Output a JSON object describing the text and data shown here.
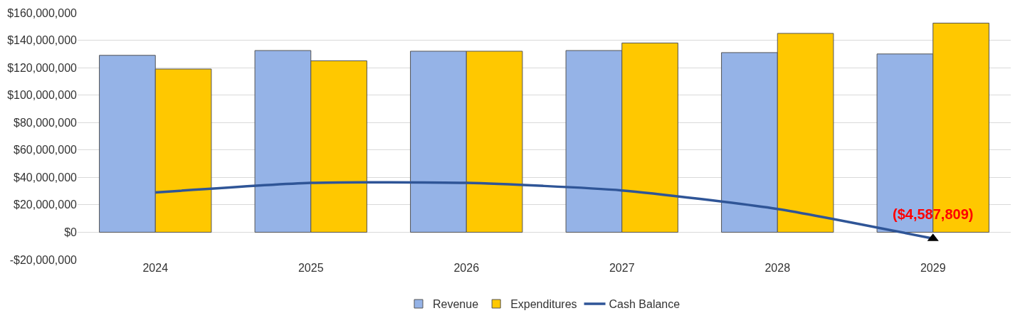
{
  "chart_data": {
    "type": "bar",
    "categories": [
      "2024",
      "2025",
      "2026",
      "2027",
      "2028",
      "2029"
    ],
    "series": [
      {
        "name": "Revenue",
        "color": "#95b3e7",
        "values": [
          129000000,
          132500000,
          132000000,
          132500000,
          131000000,
          130000000
        ]
      },
      {
        "name": "Expenditures",
        "color": "#ffc800",
        "values": [
          119000000,
          125000000,
          132000000,
          138000000,
          145000000,
          152500000
        ]
      },
      {
        "name": "Cash Balance",
        "type": "line",
        "color": "#2f5597",
        "values": [
          29000000,
          36000000,
          36000000,
          30500000,
          17000000,
          -4587809
        ]
      }
    ],
    "ylim": [
      -20000000,
      160000000
    ],
    "yticks": [
      {
        "value": -20000000,
        "label": "-$20,000,000"
      },
      {
        "value": 0,
        "label": "$0"
      },
      {
        "value": 20000000,
        "label": "$20,000,000"
      },
      {
        "value": 40000000,
        "label": "$40,000,000"
      },
      {
        "value": 60000000,
        "label": "$60,000,000"
      },
      {
        "value": 80000000,
        "label": "$80,000,000"
      },
      {
        "value": 100000000,
        "label": "$100,000,000"
      },
      {
        "value": 120000000,
        "label": "$120,000,000"
      },
      {
        "value": 140000000,
        "label": "$140,000,000"
      },
      {
        "value": 160000000,
        "label": "$160,000,000"
      }
    ],
    "annotations": [
      {
        "text": "($4,587,809)",
        "x": "2029",
        "y": -4587809
      }
    ],
    "grid": "y",
    "legend": "bottom"
  }
}
